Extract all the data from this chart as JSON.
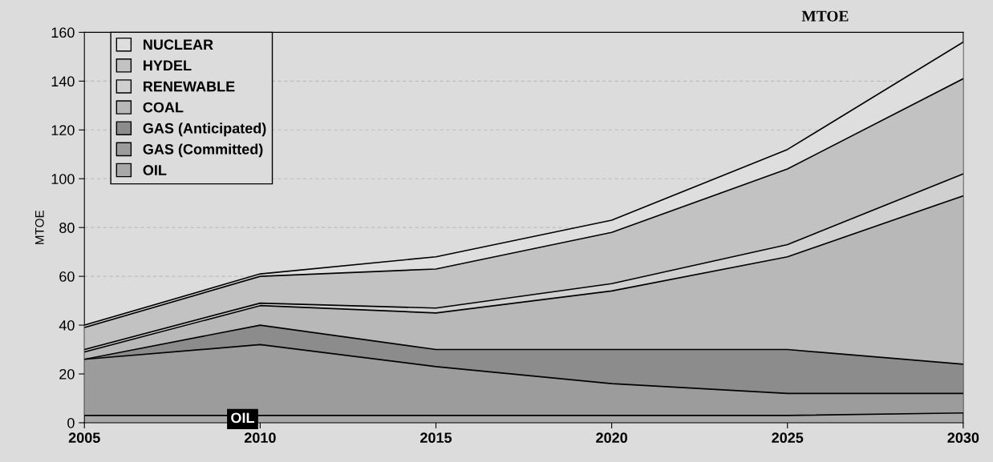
{
  "chart_data": {
    "type": "area",
    "stacked": true,
    "title": "MTOE",
    "ylabel": "MTOE",
    "x": [
      2005,
      2010,
      2015,
      2020,
      2025,
      2030
    ],
    "series": [
      {
        "name": "OIL",
        "color": "#a8a8a8",
        "values": [
          3,
          3,
          3,
          3,
          3,
          4
        ]
      },
      {
        "name": "GAS (Committed)",
        "color": "#9c9c9c",
        "values": [
          23,
          29,
          20,
          13,
          9,
          8
        ]
      },
      {
        "name": "GAS (Anticipated)",
        "color": "#8c8c8c",
        "values": [
          0,
          8,
          7,
          14,
          18,
          12
        ]
      },
      {
        "name": "COAL",
        "color": "#b8b8b8",
        "values": [
          3,
          8,
          15,
          24,
          38,
          69
        ]
      },
      {
        "name": "RENEWABLE",
        "color": "#d0d0d0",
        "values": [
          1,
          1,
          2,
          3,
          5,
          9
        ]
      },
      {
        "name": "HYDEL",
        "color": "#c2c2c2",
        "values": [
          9,
          11,
          16,
          21,
          31,
          39
        ]
      },
      {
        "name": "NUCLEAR",
        "color": "#dedede",
        "values": [
          1,
          1,
          5,
          5,
          8,
          15
        ]
      }
    ],
    "xlim": [
      2005,
      2030
    ],
    "xticks": [
      2005,
      2010,
      2015,
      2020,
      2025,
      2030
    ],
    "ylim": [
      0,
      160
    ],
    "yticks": [
      0,
      20,
      40,
      60,
      80,
      100,
      120,
      140,
      160
    ],
    "grid": "y",
    "legend": "top left",
    "annotations": [
      {
        "text": "OIL",
        "x": 2009.5,
        "y": 1.5
      }
    ]
  }
}
